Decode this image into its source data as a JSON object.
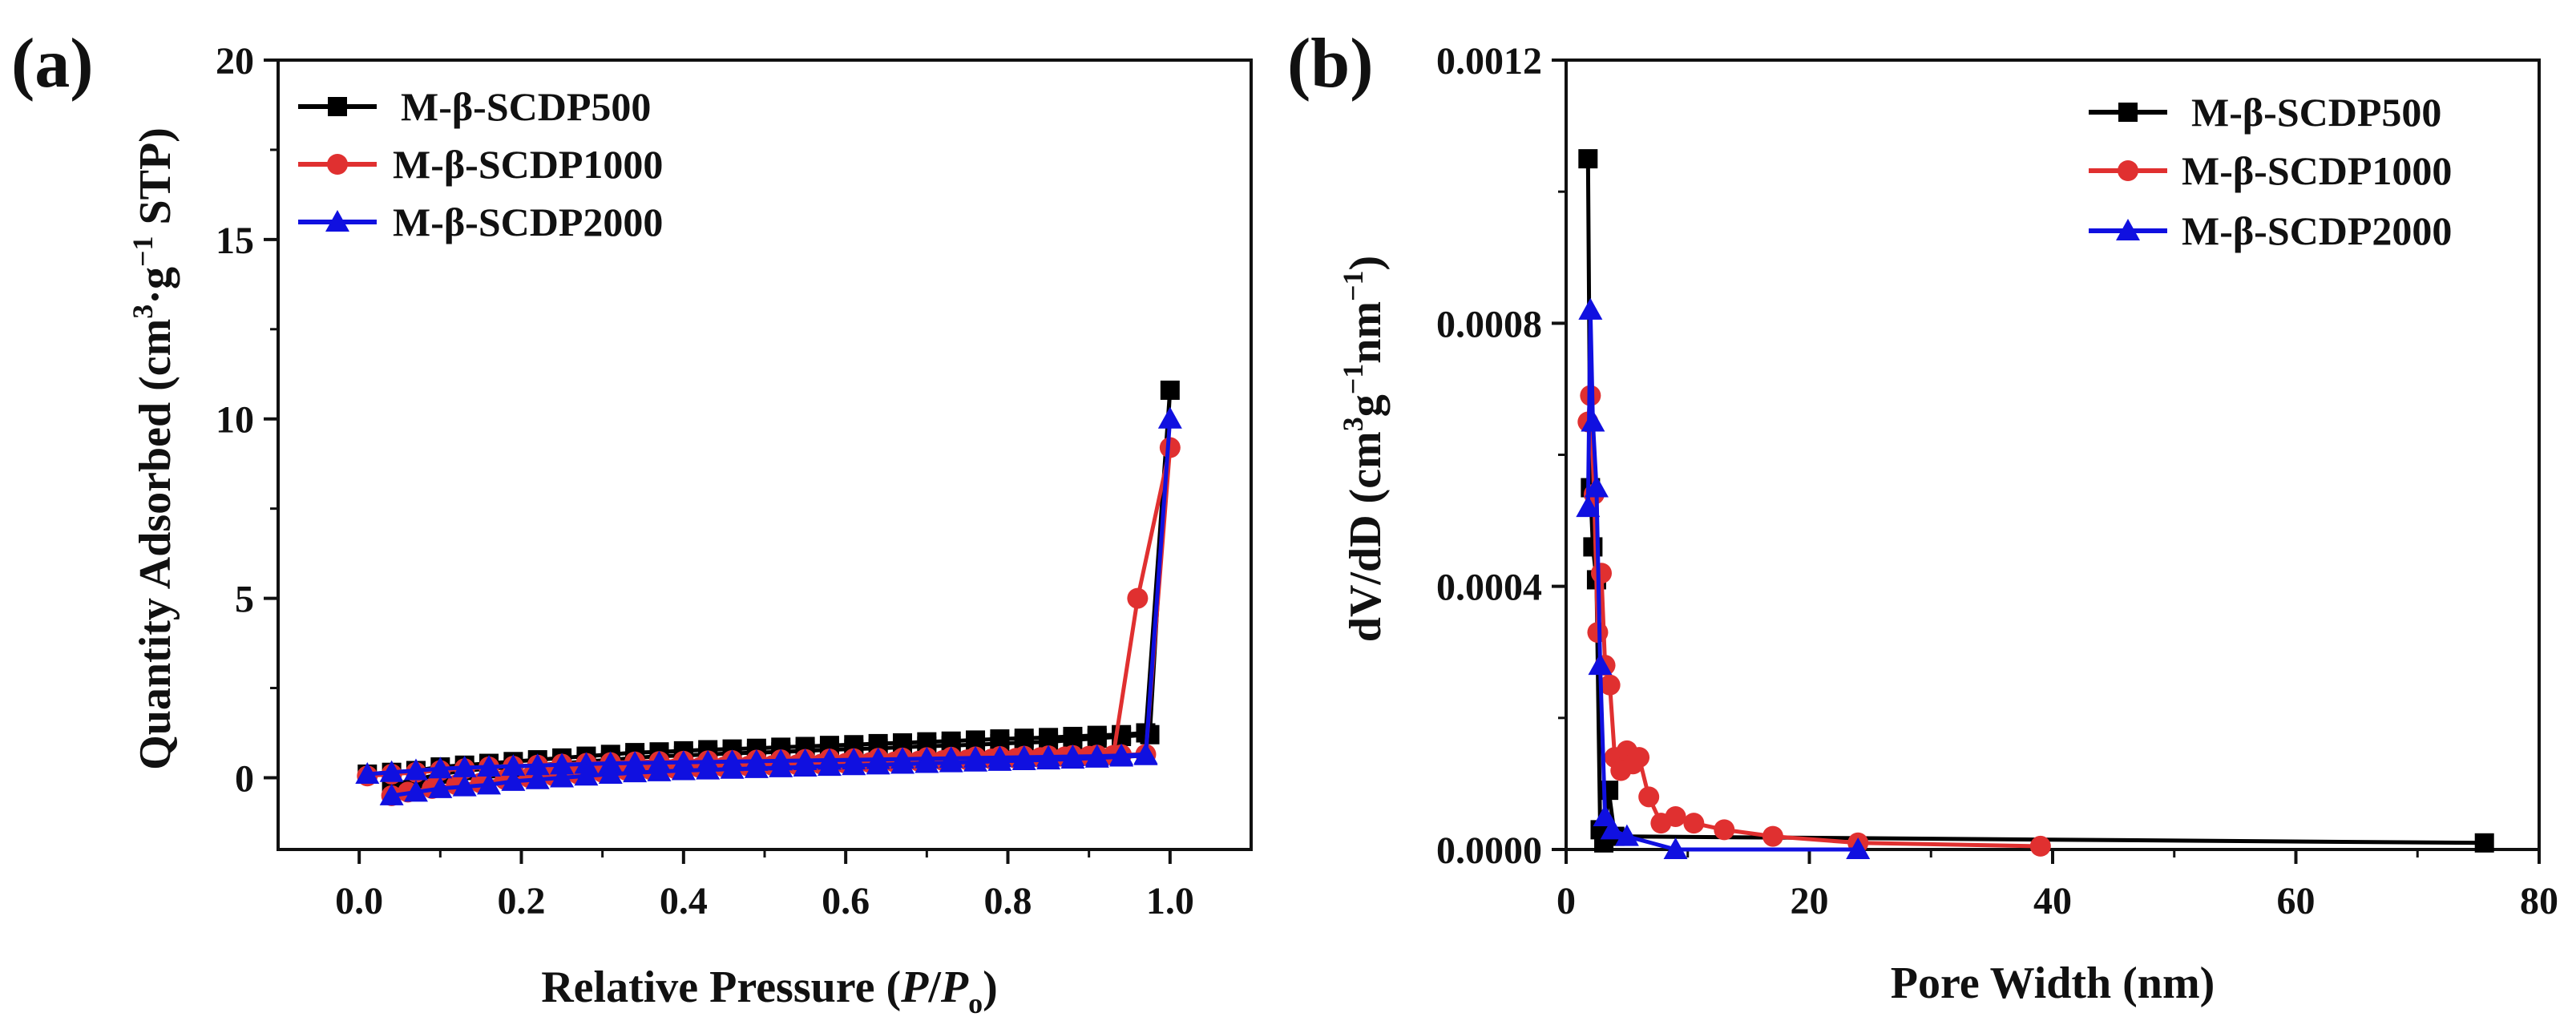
{
  "colors": {
    "s500": "#000000",
    "s1000": "#e03030",
    "s2000": "#1010e0"
  },
  "chart_data": [
    {
      "type": "line",
      "panel_label": "(a)",
      "xlabel_prefix": "Relative Pressure (",
      "xlabel_p": "P",
      "xlabel_slash": "/",
      "xlabel_p0": "P",
      "xlabel_sub": "o",
      "xlabel_suffix": ")",
      "ylabel_main": "Quantity Adsorbed (cm",
      "ylabel_sup1": "3",
      "ylabel_mid": "·g",
      "ylabel_sup2": "−1",
      "ylabel_end": " STP)",
      "xlim": [
        -0.1,
        1.1
      ],
      "ylim": [
        -2,
        20
      ],
      "xticks": [
        0.0,
        0.2,
        0.4,
        0.6,
        0.8,
        1.0
      ],
      "xtick_labels": [
        "0.0",
        "0.2",
        "0.4",
        "0.6",
        "0.8",
        "1.0"
      ],
      "yticks": [
        0,
        5,
        10,
        15,
        20
      ],
      "ytick_labels": [
        "0",
        "5",
        "10",
        "15",
        "20"
      ],
      "legend": [
        "M-β-SCDP500",
        "M-β-SCDP1000",
        "M-β-SCDP2000"
      ],
      "series": [
        {
          "name": "M-β-SCDP500",
          "marker": "square",
          "color_key": "s500",
          "x": [
            0.01,
            0.04,
            0.07,
            0.1,
            0.13,
            0.16,
            0.19,
            0.22,
            0.25,
            0.28,
            0.31,
            0.34,
            0.37,
            0.4,
            0.43,
            0.46,
            0.49,
            0.52,
            0.55,
            0.58,
            0.61,
            0.64,
            0.67,
            0.7,
            0.73,
            0.76,
            0.79,
            0.82,
            0.85,
            0.88,
            0.91,
            0.94,
            0.97,
            1.0,
            0.975,
            0.94,
            0.91,
            0.88,
            0.85,
            0.82,
            0.79,
            0.76,
            0.73,
            0.7,
            0.67,
            0.64,
            0.61,
            0.58,
            0.55,
            0.52,
            0.49,
            0.46,
            0.43,
            0.4,
            0.37,
            0.34,
            0.31,
            0.28,
            0.25,
            0.22,
            0.19,
            0.16,
            0.13,
            0.1,
            0.07,
            0.04
          ],
          "y": [
            0.1,
            0.15,
            0.2,
            0.3,
            0.35,
            0.4,
            0.45,
            0.5,
            0.55,
            0.6,
            0.65,
            0.7,
            0.72,
            0.75,
            0.78,
            0.8,
            0.82,
            0.85,
            0.87,
            0.9,
            0.92,
            0.95,
            0.97,
            1.0,
            1.02,
            1.05,
            1.08,
            1.1,
            1.12,
            1.15,
            1.18,
            1.2,
            1.25,
            10.8,
            1.2,
            1.15,
            1.1,
            1.05,
            1.0,
            0.98,
            0.95,
            0.92,
            0.9,
            0.88,
            0.85,
            0.82,
            0.8,
            0.78,
            0.75,
            0.72,
            0.7,
            0.68,
            0.65,
            0.62,
            0.6,
            0.55,
            0.5,
            0.45,
            0.4,
            0.35,
            0.3,
            0.25,
            0.2,
            0.1,
            -0.05,
            -0.2
          ]
        },
        {
          "name": "M-β-SCDP1000",
          "marker": "circle",
          "color_key": "s1000",
          "x": [
            0.01,
            0.04,
            0.07,
            0.1,
            0.13,
            0.16,
            0.19,
            0.22,
            0.25,
            0.28,
            0.31,
            0.34,
            0.37,
            0.4,
            0.43,
            0.46,
            0.49,
            0.52,
            0.55,
            0.58,
            0.61,
            0.64,
            0.67,
            0.7,
            0.73,
            0.76,
            0.79,
            0.82,
            0.85,
            0.88,
            0.91,
            0.94,
            0.97,
            1.0,
            0.96,
            0.93,
            0.9,
            0.87,
            0.84,
            0.81,
            0.78,
            0.75,
            0.72,
            0.69,
            0.66,
            0.63,
            0.6,
            0.57,
            0.54,
            0.51,
            0.48,
            0.45,
            0.42,
            0.39,
            0.36,
            0.33,
            0.3,
            0.27,
            0.24,
            0.21,
            0.18,
            0.15,
            0.12,
            0.09,
            0.06,
            0.04
          ],
          "y": [
            0.05,
            0.1,
            0.15,
            0.2,
            0.25,
            0.3,
            0.32,
            0.35,
            0.38,
            0.4,
            0.42,
            0.44,
            0.45,
            0.46,
            0.47,
            0.48,
            0.49,
            0.5,
            0.51,
            0.52,
            0.53,
            0.54,
            0.55,
            0.56,
            0.57,
            0.58,
            0.59,
            0.6,
            0.61,
            0.62,
            0.63,
            0.64,
            0.65,
            9.2,
            5.0,
            0.62,
            0.6,
            0.58,
            0.56,
            0.54,
            0.52,
            0.5,
            0.48,
            0.46,
            0.44,
            0.42,
            0.4,
            0.38,
            0.36,
            0.34,
            0.32,
            0.3,
            0.28,
            0.25,
            0.22,
            0.2,
            0.15,
            0.1,
            0.05,
            0.0,
            -0.05,
            -0.15,
            -0.2,
            -0.3,
            -0.4,
            -0.5
          ]
        },
        {
          "name": "M-β-SCDP2000",
          "marker": "triangle",
          "color_key": "s2000",
          "x": [
            0.01,
            0.04,
            0.07,
            0.1,
            0.13,
            0.16,
            0.19,
            0.22,
            0.25,
            0.28,
            0.31,
            0.34,
            0.37,
            0.4,
            0.43,
            0.46,
            0.49,
            0.52,
            0.55,
            0.58,
            0.61,
            0.64,
            0.67,
            0.7,
            0.73,
            0.76,
            0.79,
            0.82,
            0.85,
            0.88,
            0.91,
            0.94,
            0.97,
            1.0,
            0.97,
            0.94,
            0.91,
            0.88,
            0.85,
            0.82,
            0.79,
            0.76,
            0.73,
            0.7,
            0.67,
            0.64,
            0.61,
            0.58,
            0.55,
            0.52,
            0.49,
            0.46,
            0.43,
            0.4,
            0.37,
            0.34,
            0.31,
            0.28,
            0.25,
            0.22,
            0.19,
            0.16,
            0.13,
            0.1,
            0.07,
            0.04
          ],
          "y": [
            0.1,
            0.15,
            0.2,
            0.25,
            0.28,
            0.3,
            0.32,
            0.34,
            0.36,
            0.38,
            0.4,
            0.41,
            0.42,
            0.43,
            0.44,
            0.45,
            0.46,
            0.47,
            0.48,
            0.49,
            0.5,
            0.51,
            0.52,
            0.53,
            0.54,
            0.55,
            0.56,
            0.57,
            0.58,
            0.59,
            0.6,
            0.62,
            0.65,
            10.0,
            0.62,
            0.58,
            0.55,
            0.52,
            0.5,
            0.48,
            0.46,
            0.44,
            0.42,
            0.4,
            0.38,
            0.36,
            0.34,
            0.32,
            0.3,
            0.28,
            0.26,
            0.24,
            0.22,
            0.2,
            0.17,
            0.14,
            0.1,
            0.05,
            0.0,
            -0.05,
            -0.1,
            -0.2,
            -0.25,
            -0.3,
            -0.4,
            -0.5
          ]
        }
      ]
    },
    {
      "type": "line",
      "panel_label": "(b)",
      "xlabel": "Pore Width (nm)",
      "ylabel_main": "dV/dD (cm",
      "ylabel_sup1": "3",
      "ylabel_mid": "g",
      "ylabel_sup2": "−1",
      "ylabel_mid2": "nm",
      "ylabel_sup3": "−1",
      "ylabel_end": ")",
      "xlim": [
        0,
        80
      ],
      "ylim": [
        0,
        0.0012
      ],
      "xticks": [
        0,
        20,
        40,
        60,
        80
      ],
      "xtick_labels": [
        "0",
        "20",
        "40",
        "60",
        "80"
      ],
      "yticks": [
        0,
        0.0004,
        0.0008,
        0.0012
      ],
      "ytick_labels": [
        "0.0000",
        "0.0004",
        "0.0008",
        "0.0012"
      ],
      "legend": [
        "M-β-SCDP500",
        "M-β-SCDP1000",
        "M-β-SCDP2000"
      ],
      "series": [
        {
          "name": "M-β-SCDP500",
          "marker": "square",
          "color_key": "s500",
          "x": [
            1.8,
            2.0,
            2.2,
            2.5,
            2.8,
            3.1,
            3.5,
            4.0,
            75.5
          ],
          "y": [
            0.00105,
            0.00055,
            0.00046,
            0.00041,
            3e-05,
            1e-05,
            9e-05,
            2e-05,
            1e-05
          ]
        },
        {
          "name": "M-β-SCDP1000",
          "marker": "circle",
          "color_key": "s1000",
          "x": [
            1.8,
            2.0,
            2.3,
            2.6,
            2.9,
            3.2,
            3.6,
            4.0,
            4.5,
            5.0,
            5.5,
            6.0,
            6.8,
            7.8,
            9.0,
            10.5,
            13.0,
            17.0,
            24.0,
            39.0
          ],
          "y": [
            0.00065,
            0.00069,
            0.00054,
            0.00033,
            0.00042,
            0.00028,
            0.00025,
            0.00014,
            0.00012,
            0.00015,
            0.00013,
            0.00014,
            8e-05,
            4e-05,
            5e-05,
            4e-05,
            3e-05,
            2e-05,
            1e-05,
            5e-06
          ]
        },
        {
          "name": "M-β-SCDP2000",
          "marker": "triangle",
          "color_key": "s2000",
          "x": [
            1.8,
            2.0,
            2.2,
            2.5,
            2.8,
            3.2,
            3.8,
            5.0,
            9.0,
            24.0
          ],
          "y": [
            0.00052,
            0.00082,
            0.00065,
            0.00055,
            0.00028,
            5e-05,
            3e-05,
            2e-05,
            0.0,
            0.0
          ]
        }
      ]
    }
  ]
}
